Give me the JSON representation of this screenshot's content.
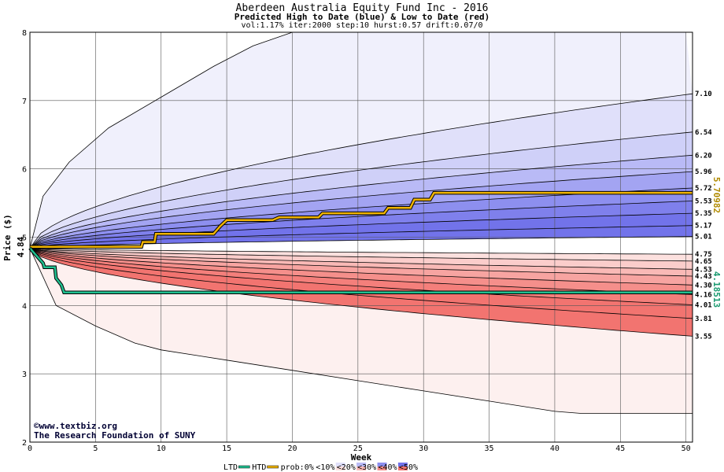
{
  "chart_data": {
    "type": "area",
    "title": "Aberdeen Australia Equity Fund Inc - 2016",
    "subtitle": "Predicted High to Date (blue) &  Low to Date (red)",
    "params": "vol:1.17% iter:2000 step:10 hurst:0.57 drift:0.07/0",
    "xlabel": "Week",
    "ylabel": "Price ($)",
    "xlim": [
      0,
      50.5
    ],
    "ylim": [
      2,
      8
    ],
    "xticks": [
      0,
      5,
      10,
      15,
      20,
      25,
      30,
      35,
      40,
      45,
      50
    ],
    "yticks": [
      2,
      3,
      4,
      5,
      6,
      7,
      8
    ],
    "grid": true,
    "start_price": 4.84,
    "start_label": "4.84",
    "high_quantile_labels": [
      "7.10",
      "6.54",
      "6.20",
      "5.96",
      "5.72",
      "5.53",
      "5.35",
      "5.17",
      "5.01"
    ],
    "low_quantile_labels": [
      "4.75",
      "4.65",
      "4.53",
      "4.43",
      "4.30",
      "4.16",
      "4.01",
      "3.81",
      "3.55"
    ],
    "high_quantiles_end": [
      7.1,
      6.54,
      6.2,
      5.96,
      5.72,
      5.53,
      5.35,
      5.17,
      5.01
    ],
    "low_quantiles_end": [
      4.75,
      4.65,
      4.53,
      4.43,
      4.3,
      4.16,
      4.01,
      3.81,
      3.55
    ],
    "outer_high": {
      "x": [
        0,
        1,
        3,
        6,
        10,
        14,
        17,
        20,
        25,
        30,
        40,
        50
      ],
      "y": [
        4.84,
        5.6,
        6.1,
        6.6,
        7.05,
        7.5,
        7.8,
        8.0,
        8.0,
        8.0,
        8.0,
        8.0
      ]
    },
    "outer_low": {
      "x": [
        0,
        2,
        5,
        8,
        10,
        15,
        20,
        25,
        30,
        35,
        40,
        42,
        50.5
      ],
      "y": [
        4.84,
        4.0,
        3.7,
        3.45,
        3.35,
        3.2,
        3.05,
        2.9,
        2.75,
        2.6,
        2.45,
        2.42,
        2.42
      ]
    },
    "series": [
      {
        "name": "HTD",
        "color": "#f0b400",
        "x": [
          0,
          8.5,
          8.6,
          9.5,
          9.6,
          14,
          14.5,
          15,
          18.5,
          19,
          22,
          22.3,
          27,
          27.3,
          29,
          29.3,
          30.5,
          30.8,
          50.5
        ],
        "y": [
          4.86,
          4.86,
          4.93,
          4.93,
          5.05,
          5.05,
          5.16,
          5.25,
          5.25,
          5.29,
          5.29,
          5.35,
          5.35,
          5.43,
          5.43,
          5.55,
          5.55,
          5.65,
          5.65
        ]
      },
      {
        "name": "LTD",
        "color": "#20c090",
        "x": [
          0,
          1.0,
          1.1,
          1.9,
          2.0,
          2.4,
          2.6,
          50.5
        ],
        "y": [
          4.84,
          4.62,
          4.56,
          4.56,
          4.4,
          4.3,
          4.19,
          4.19
        ]
      }
    ],
    "htd_value_label": "5.70982",
    "ltd_value_label": "4.18513",
    "legend": {
      "position": "bottom",
      "items": [
        "LTD",
        "HTD",
        "prob:0%",
        "<10%",
        "<20%",
        "<30%",
        "<40%",
        "<50%"
      ]
    },
    "watermark": [
      "©www.textbiz.org",
      "The Research Foundation of SUNY"
    ]
  },
  "colors": {
    "high_bands": [
      "#f0f0fc",
      "#e0e0fa",
      "#cfd0f8",
      "#b9baf6",
      "#a3a4f2",
      "#8d8fef",
      "#7f80ec",
      "#7273ea"
    ],
    "low_bands": [
      "#fdf0ef",
      "#fce0de",
      "#fbcdcb",
      "#f9b9b6",
      "#f7a4a1",
      "#f58f8b",
      "#f47f7b",
      "#f27470"
    ],
    "htd": "#f0b400",
    "ltd": "#20c090"
  }
}
